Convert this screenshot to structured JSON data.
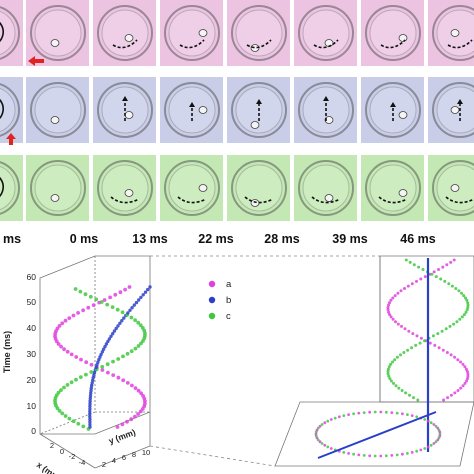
{
  "timeline": {
    "labels": [
      "ms",
      "0 ms",
      "13 ms",
      "22 ms",
      "28 ms",
      "39 ms",
      "46 ms"
    ]
  },
  "rows": [
    {
      "name": "a",
      "background": "#ecc4e2",
      "border": "#d6a3cc"
    },
    {
      "name": "b",
      "background": "#c9cde8",
      "border": "#a8aed6"
    },
    {
      "name": "c",
      "background": "#c3e8b3",
      "border": "#9fd18c"
    }
  ],
  "plot3d": {
    "axis_z_label": "Time (ms)",
    "axis_x_label": "x (mm)",
    "axis_y_label": "y (mm)",
    "z_ticks": [
      "0",
      "10",
      "20",
      "30",
      "40",
      "50",
      "60"
    ],
    "x_ticks": [
      "2",
      "0",
      "-2",
      "-4"
    ],
    "y_ticks": [
      "2",
      "4",
      "6",
      "8",
      "10"
    ],
    "legend": [
      {
        "label": "a",
        "color": "#e040e0"
      },
      {
        "label": "b",
        "color": "#2a3fc8"
      },
      {
        "label": "c",
        "color": "#3ec83e"
      }
    ]
  }
}
